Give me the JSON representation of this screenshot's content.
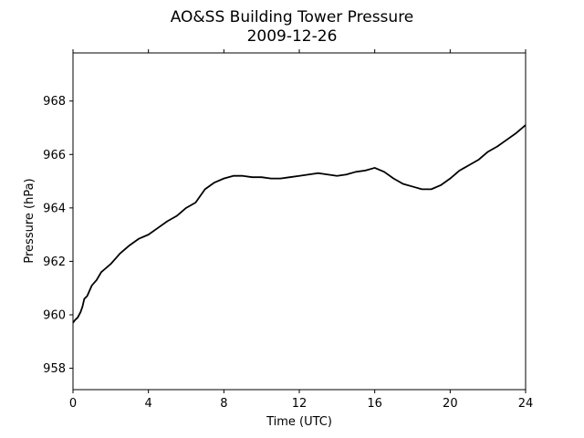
{
  "chart_data": {
    "type": "line",
    "title": "AO&SS Building Tower Pressure",
    "subtitle": "2009-12-26",
    "xlabel": "Time (UTC)",
    "ylabel": "Pressure (hPa)",
    "xlim": [
      0,
      24
    ],
    "ylim": [
      957.2,
      969.8
    ],
    "xticks": [
      0,
      4,
      8,
      12,
      16,
      20,
      24
    ],
    "yticks": [
      958,
      960,
      962,
      964,
      966,
      968
    ],
    "grid": false,
    "line_color": "#000000",
    "series": [
      {
        "x": [
          0,
          0.1,
          0.25,
          0.4,
          0.5,
          0.6,
          0.75,
          1.0,
          1.25,
          1.5,
          1.75,
          2.0,
          2.5,
          3.0,
          3.5,
          4.0,
          4.5,
          5.0,
          5.5,
          6.0,
          6.5,
          7.0,
          7.5,
          8.0,
          8.5,
          9.0,
          9.5,
          10.0,
          10.5,
          11.0,
          11.5,
          12.0,
          12.5,
          13.0,
          13.5,
          14.0,
          14.5,
          15.0,
          15.5,
          16.0,
          16.5,
          17.0,
          17.5,
          18.0,
          18.5,
          19.0,
          19.5,
          20.0,
          20.5,
          21.0,
          21.5,
          22.0,
          22.5,
          23.0,
          23.5,
          24.0
        ],
        "y": [
          959.7,
          959.8,
          959.9,
          960.1,
          960.3,
          960.6,
          960.7,
          961.1,
          961.3,
          961.6,
          961.75,
          961.9,
          962.3,
          962.6,
          962.85,
          963.0,
          963.25,
          963.5,
          963.7,
          964.0,
          964.2,
          964.7,
          964.95,
          965.1,
          965.2,
          965.2,
          965.15,
          965.15,
          965.1,
          965.1,
          965.15,
          965.2,
          965.25,
          965.3,
          965.25,
          965.2,
          965.25,
          965.35,
          965.4,
          965.5,
          965.35,
          965.1,
          964.9,
          964.8,
          964.7,
          964.7,
          964.85,
          965.1,
          965.4,
          965.6,
          965.8,
          966.1,
          966.3,
          966.55,
          966.8,
          967.1
        ]
      }
    ]
  }
}
